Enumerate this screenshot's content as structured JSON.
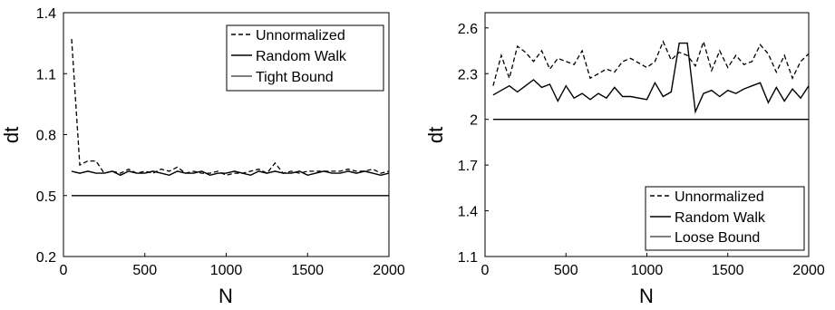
{
  "chart_data": [
    {
      "type": "line",
      "title": "",
      "xlabel": "N",
      "ylabel": "dt",
      "xlim": [
        0,
        2000
      ],
      "ylim": [
        0.2,
        1.4
      ],
      "xticks": [
        "0",
        "500",
        "1000",
        "1500",
        "2000"
      ],
      "yticks": [
        "0.2",
        "0.5",
        "0.8",
        "1.1",
        "1.4"
      ],
      "legend_position": "top-right",
      "x": [
        50,
        100,
        150,
        200,
        250,
        300,
        350,
        400,
        450,
        500,
        550,
        600,
        650,
        700,
        750,
        800,
        850,
        900,
        950,
        1000,
        1050,
        1100,
        1150,
        1200,
        1250,
        1300,
        1350,
        1400,
        1450,
        1500,
        1550,
        1600,
        1650,
        1700,
        1750,
        1800,
        1850,
        1900,
        1950,
        2000
      ],
      "series": [
        {
          "name": "Unnormalized",
          "style": "dashed",
          "values": [
            1.27,
            0.65,
            0.67,
            0.67,
            0.61,
            0.62,
            0.61,
            0.63,
            0.61,
            0.62,
            0.61,
            0.63,
            0.62,
            0.64,
            0.61,
            0.62,
            0.61,
            0.61,
            0.62,
            0.6,
            0.61,
            0.61,
            0.62,
            0.63,
            0.61,
            0.66,
            0.61,
            0.62,
            0.61,
            0.62,
            0.62,
            0.62,
            0.62,
            0.62,
            0.63,
            0.62,
            0.62,
            0.63,
            0.61,
            0.62
          ]
        },
        {
          "name": "Random Walk",
          "style": "solid",
          "values": [
            0.62,
            0.61,
            0.62,
            0.61,
            0.61,
            0.62,
            0.6,
            0.62,
            0.61,
            0.61,
            0.62,
            0.61,
            0.6,
            0.62,
            0.61,
            0.61,
            0.62,
            0.6,
            0.61,
            0.61,
            0.62,
            0.61,
            0.6,
            0.62,
            0.61,
            0.62,
            0.61,
            0.61,
            0.62,
            0.6,
            0.61,
            0.62,
            0.61,
            0.61,
            0.62,
            0.61,
            0.62,
            0.61,
            0.6,
            0.61
          ]
        },
        {
          "name": "Tight Bound",
          "style": "solid",
          "values": [
            0.5,
            0.5,
            0.5,
            0.5,
            0.5,
            0.5,
            0.5,
            0.5,
            0.5,
            0.5,
            0.5,
            0.5,
            0.5,
            0.5,
            0.5,
            0.5,
            0.5,
            0.5,
            0.5,
            0.5,
            0.5,
            0.5,
            0.5,
            0.5,
            0.5,
            0.5,
            0.5,
            0.5,
            0.5,
            0.5,
            0.5,
            0.5,
            0.5,
            0.5,
            0.5,
            0.5,
            0.5,
            0.5,
            0.5,
            0.5
          ]
        }
      ]
    },
    {
      "type": "line",
      "title": "",
      "xlabel": "N",
      "ylabel": "dt",
      "xlim": [
        0,
        2000
      ],
      "ylim": [
        1.1,
        2.7
      ],
      "xticks": [
        "0",
        "500",
        "1000",
        "1500",
        "2000"
      ],
      "yticks": [
        "1.1",
        "1.4",
        "1.7",
        "2",
        "2.3",
        "2.6"
      ],
      "legend_position": "bottom-right",
      "x": [
        50,
        100,
        150,
        200,
        250,
        300,
        350,
        400,
        450,
        500,
        550,
        600,
        650,
        700,
        750,
        800,
        850,
        900,
        950,
        1000,
        1050,
        1100,
        1150,
        1200,
        1250,
        1300,
        1350,
        1400,
        1450,
        1500,
        1550,
        1600,
        1650,
        1700,
        1750,
        1800,
        1850,
        1900,
        1950,
        2000
      ],
      "series": [
        {
          "name": "Unnormalized",
          "style": "dashed",
          "values": [
            2.22,
            2.42,
            2.27,
            2.48,
            2.44,
            2.38,
            2.45,
            2.33,
            2.4,
            2.38,
            2.36,
            2.45,
            2.27,
            2.3,
            2.33,
            2.31,
            2.38,
            2.4,
            2.37,
            2.34,
            2.38,
            2.51,
            2.39,
            2.44,
            2.42,
            2.35,
            2.51,
            2.32,
            2.45,
            2.34,
            2.42,
            2.36,
            2.38,
            2.49,
            2.43,
            2.31,
            2.42,
            2.27,
            2.38,
            2.43
          ]
        },
        {
          "name": "Random Walk",
          "style": "solid",
          "values": [
            2.16,
            2.19,
            2.22,
            2.18,
            2.22,
            2.26,
            2.21,
            2.23,
            2.12,
            2.22,
            2.14,
            2.17,
            2.13,
            2.17,
            2.14,
            2.21,
            2.15,
            2.15,
            2.14,
            2.13,
            2.24,
            2.15,
            2.18,
            2.5,
            2.5,
            2.05,
            2.17,
            2.19,
            2.15,
            2.19,
            2.17,
            2.2,
            2.22,
            2.24,
            2.11,
            2.21,
            2.12,
            2.2,
            2.14,
            2.22
          ]
        },
        {
          "name": "Loose Bound",
          "style": "solid",
          "values": [
            2.0,
            2.0,
            2.0,
            2.0,
            2.0,
            2.0,
            2.0,
            2.0,
            2.0,
            2.0,
            2.0,
            2.0,
            2.0,
            2.0,
            2.0,
            2.0,
            2.0,
            2.0,
            2.0,
            2.0,
            2.0,
            2.0,
            2.0,
            2.0,
            2.0,
            2.0,
            2.0,
            2.0,
            2.0,
            2.0,
            2.0,
            2.0,
            2.0,
            2.0,
            2.0,
            2.0,
            2.0,
            2.0,
            2.0,
            2.0
          ]
        }
      ]
    }
  ]
}
